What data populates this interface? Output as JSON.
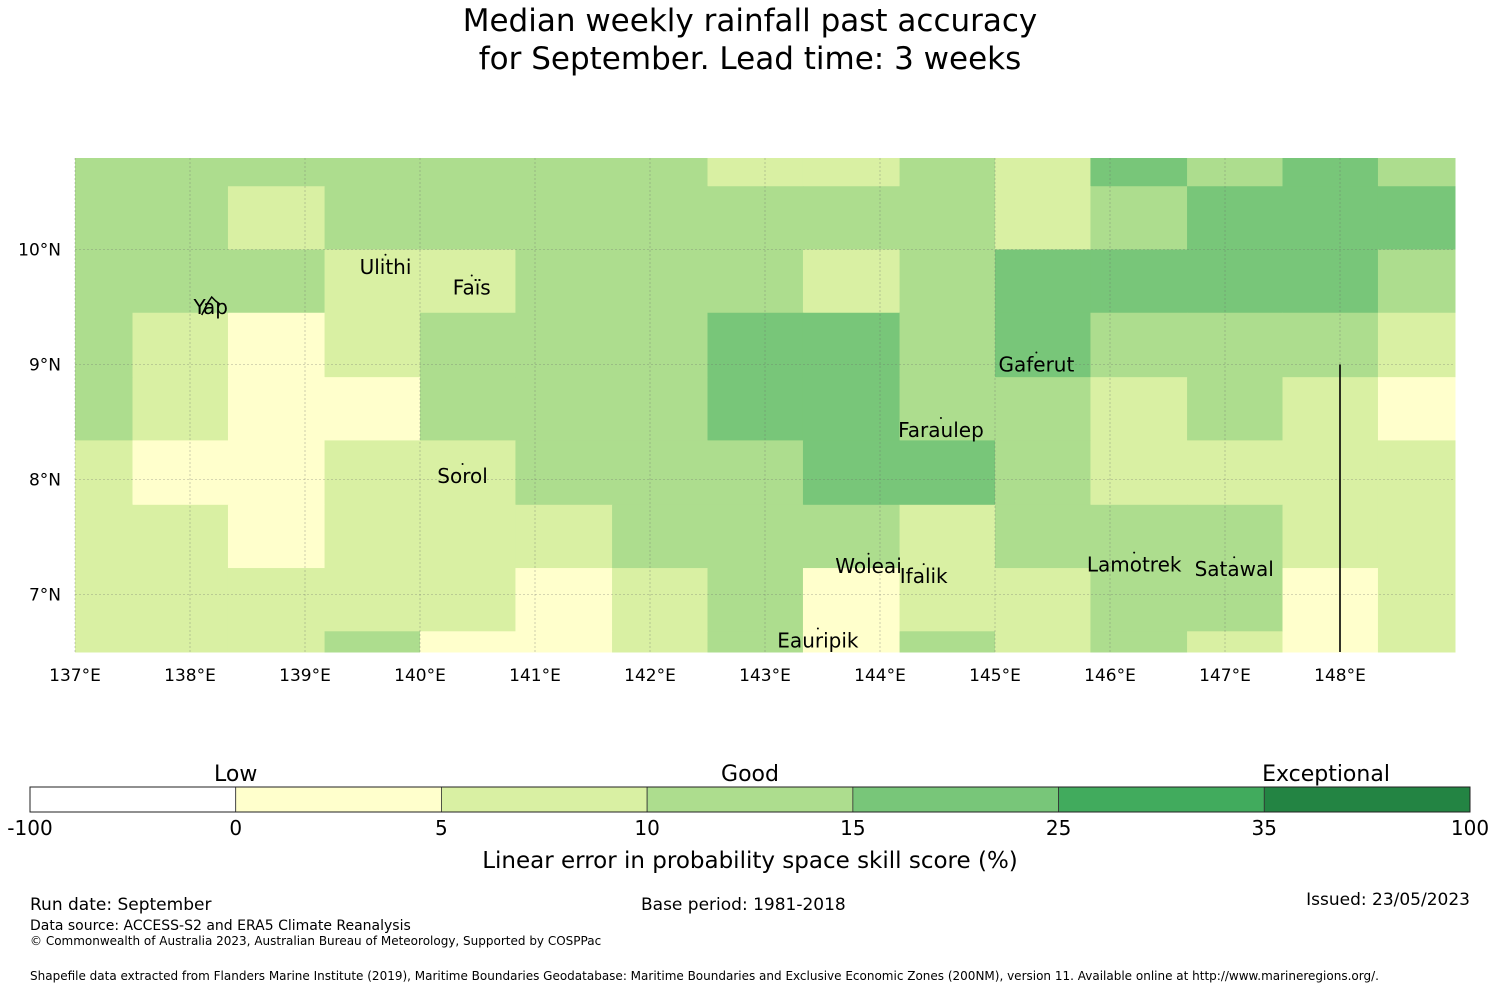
{
  "title": {
    "line1": "Median weekly rainfall past accuracy",
    "line2": "for September. Lead time: 3 weeks"
  },
  "chart_data": {
    "type": "heatmap",
    "x_range_lon": [
      137,
      149
    ],
    "y_range_lat": [
      6.5,
      10.8
    ],
    "x_ticks": [
      {
        "value": 137,
        "label": "137°E"
      },
      {
        "value": 138,
        "label": "138°E"
      },
      {
        "value": 139,
        "label": "139°E"
      },
      {
        "value": 140,
        "label": "140°E"
      },
      {
        "value": 141,
        "label": "141°E"
      },
      {
        "value": 142,
        "label": "142°E"
      },
      {
        "value": 143,
        "label": "143°E"
      },
      {
        "value": 144,
        "label": "144°E"
      },
      {
        "value": 145,
        "label": "145°E"
      },
      {
        "value": 146,
        "label": "146°E"
      },
      {
        "value": 147,
        "label": "147°E"
      },
      {
        "value": 148,
        "label": "148°E"
      }
    ],
    "y_ticks": [
      {
        "value": 10,
        "label": "10°N"
      },
      {
        "value": 9,
        "label": "9°N"
      },
      {
        "value": 8,
        "label": "8°N"
      },
      {
        "value": 7,
        "label": "7°N"
      }
    ],
    "grid": true,
    "cell_lon_edges": [
      136.5,
      137.5,
      138.33,
      139.17,
      140.0,
      140.83,
      141.67,
      142.5,
      143.33,
      144.17,
      145.0,
      145.83,
      146.67,
      147.5,
      148.33,
      149.17
    ],
    "cell_lat_edges": [
      10.8,
      10.55,
      10.0,
      9.45,
      8.89,
      8.34,
      7.78,
      7.23,
      6.68,
      6.5
    ],
    "cell_classes": [
      [
        2,
        2,
        2,
        2,
        2,
        2,
        2,
        1,
        1,
        2,
        1,
        3,
        2,
        3,
        2
      ],
      [
        2,
        2,
        1,
        2,
        2,
        2,
        2,
        2,
        2,
        2,
        1,
        2,
        3,
        3,
        3
      ],
      [
        2,
        2,
        2,
        1,
        1,
        2,
        2,
        2,
        1,
        2,
        3,
        3,
        3,
        3,
        2
      ],
      [
        2,
        1,
        0,
        1,
        2,
        2,
        2,
        3,
        3,
        2,
        3,
        2,
        2,
        2,
        1
      ],
      [
        2,
        1,
        0,
        0,
        2,
        2,
        2,
        3,
        3,
        2,
        2,
        1,
        2,
        1,
        0
      ],
      [
        1,
        0,
        0,
        1,
        1,
        2,
        2,
        2,
        3,
        3,
        2,
        1,
        1,
        1,
        1
      ],
      [
        1,
        1,
        0,
        1,
        1,
        1,
        2,
        2,
        2,
        1,
        2,
        2,
        2,
        1,
        1
      ],
      [
        1,
        1,
        1,
        1,
        1,
        0,
        1,
        2,
        0,
        1,
        1,
        2,
        2,
        0,
        1
      ],
      [
        1,
        1,
        1,
        2,
        0,
        0,
        1,
        2,
        0,
        2,
        1,
        2,
        1,
        0,
        1
      ]
    ],
    "boundary_line": {
      "lon": 148,
      "lat_from": 9.0,
      "lat_to": 6.5
    },
    "places": [
      {
        "name": "Yap",
        "lon": 138.18,
        "lat": 9.5
      },
      {
        "name": "Ulithi",
        "lon": 139.7,
        "lat": 9.85
      },
      {
        "name": "Faïs",
        "lon": 140.45,
        "lat": 9.67
      },
      {
        "name": "Sorol",
        "lon": 140.37,
        "lat": 8.03
      },
      {
        "name": "Gaferut",
        "lon": 145.36,
        "lat": 9.0
      },
      {
        "name": "Faraulep",
        "lon": 144.53,
        "lat": 8.43
      },
      {
        "name": "Woleai",
        "lon": 143.9,
        "lat": 7.25
      },
      {
        "name": "Ifalik",
        "lon": 144.38,
        "lat": 7.16
      },
      {
        "name": "Lamotrek",
        "lon": 146.21,
        "lat": 7.26
      },
      {
        "name": "Satawal",
        "lon": 147.08,
        "lat": 7.22
      },
      {
        "name": "Eauripik",
        "lon": 143.46,
        "lat": 6.6
      }
    ],
    "colorbar": {
      "boundaries": [
        "-100",
        "0",
        "5",
        "10",
        "15",
        "25",
        "35",
        "100"
      ],
      "colors": [
        "#ffffff",
        "#ffffcc",
        "#d9f0a3",
        "#addd8e",
        "#78c679",
        "#41ab5d",
        "#238443"
      ],
      "categories": [
        {
          "label": "Low",
          "center_index": 1
        },
        {
          "label": "Good",
          "center_index": 3.5
        },
        {
          "label": "Exceptional",
          "center_index": 6.3
        }
      ],
      "label": "Linear error in probability space skill score (%)"
    }
  },
  "footer": {
    "run_date": "Run date: September",
    "base_period": "Base period: 1981-2018",
    "issued": "Issued: 23/05/2023",
    "data_source": "Data source: ACCESS-S2 and ERA5 Climate Reanalysis",
    "copyright": "© Commonwealth of Australia 2023, Australian Bureau of Meteorology, Supported by COSPPac",
    "shapefile": "Shapefile data extracted from Flanders Marine Institute (2019), Maritime Boundaries Geodatabase: Maritime Boundaries and Exclusive Economic Zones (200NM), version 11. Available online at http://www.marineregions.org/."
  }
}
